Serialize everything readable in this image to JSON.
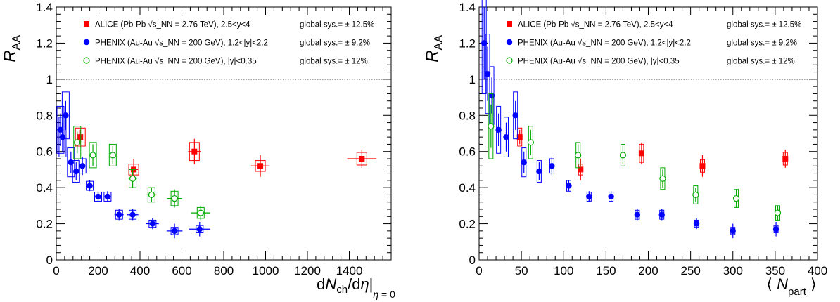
{
  "colors": {
    "alice": "#ff0000",
    "phenix_fwd": "#0000ff",
    "phenix_mid": "#00aa00",
    "reference_line": "#000000"
  },
  "legend": {
    "entries": [
      {
        "key": "alice",
        "marker": "filled-square",
        "label": "ALICE (Pb-Pb √s_NN = 2.76 TeV), 2.5<y<4",
        "sys": "global sys.= ± 12.5%"
      },
      {
        "key": "phenix_fwd",
        "marker": "filled-circle",
        "label": "PHENIX (Au-Au √s_NN = 200 GeV), 1.2<|y|<2.2",
        "sys": "global sys.= ± 9.2%"
      },
      {
        "key": "phenix_mid",
        "marker": "open-circle",
        "label": "PHENIX (Au-Au √s_NN = 200 GeV), |y|<0.35",
        "sys": "global sys.= ± 12%"
      }
    ]
  },
  "chart_data": [
    {
      "type": "scatter",
      "ylabel": "R_AA",
      "xlabel": "dN_ch/dη|_η = 0",
      "xlim": [
        0,
        1600
      ],
      "ylim": [
        0,
        1.4
      ],
      "xticks": [
        0,
        200,
        400,
        600,
        800,
        1000,
        1200,
        1400
      ],
      "yticks": [
        0,
        0.2,
        0.4,
        0.6,
        0.8,
        1,
        1.2,
        1.4
      ],
      "reference_line": 1,
      "series": [
        {
          "key": "alice",
          "points": [
            {
              "x": 115,
              "y": 0.68,
              "yerr": 0.04,
              "xerr": 12,
              "sys": 0.05,
              "boxw": 12
            },
            {
              "x": 370,
              "y": 0.5,
              "yerr": 0.06,
              "xerr": 20,
              "sys": 0.03,
              "boxw": 12
            },
            {
              "x": 660,
              "y": 0.6,
              "yerr": 0.07,
              "xerr": 30,
              "sys": 0.05,
              "boxw": 12
            },
            {
              "x": 975,
              "y": 0.52,
              "yerr": 0.06,
              "xerr": 45,
              "sys": 0.03,
              "boxw": 12
            },
            {
              "x": 1460,
              "y": 0.56,
              "yerr": 0.05,
              "xerr": 70,
              "sys": 0.035,
              "boxw": 12
            }
          ]
        },
        {
          "key": "phenix_fwd",
          "points": [
            {
              "x": 20,
              "y": 0.72,
              "yerr": 0.09,
              "xerr": 5,
              "sys": 0.13,
              "boxw": 8
            },
            {
              "x": 30,
              "y": 0.68,
              "yerr": 0.08,
              "xerr": 5,
              "sys": 0.11,
              "boxw": 8
            },
            {
              "x": 45,
              "y": 0.8,
              "yerr": 0.08,
              "xerr": 6,
              "sys": 0.13,
              "boxw": 8
            },
            {
              "x": 70,
              "y": 0.54,
              "yerr": 0.06,
              "xerr": 8,
              "sys": 0.08,
              "boxw": 8
            },
            {
              "x": 95,
              "y": 0.49,
              "yerr": 0.05,
              "xerr": 10,
              "sys": 0.06,
              "boxw": 8
            },
            {
              "x": 125,
              "y": 0.52,
              "yerr": 0.05,
              "xerr": 10,
              "sys": 0.04,
              "boxw": 8
            },
            {
              "x": 160,
              "y": 0.41,
              "yerr": 0.03,
              "xerr": 12,
              "sys": 0.025,
              "boxw": 8
            },
            {
              "x": 200,
              "y": 0.35,
              "yerr": 0.03,
              "xerr": 15,
              "sys": 0.025,
              "boxw": 8
            },
            {
              "x": 245,
              "y": 0.35,
              "yerr": 0.03,
              "xerr": 18,
              "sys": 0.025,
              "boxw": 8
            },
            {
              "x": 300,
              "y": 0.25,
              "yerr": 0.03,
              "xerr": 22,
              "sys": 0.025,
              "boxw": 8
            },
            {
              "x": 365,
              "y": 0.25,
              "yerr": 0.03,
              "xerr": 27,
              "sys": 0.025,
              "boxw": 8
            },
            {
              "x": 460,
              "y": 0.2,
              "yerr": 0.03,
              "xerr": 30,
              "sys": 0.02,
              "boxw": 8
            },
            {
              "x": 565,
              "y": 0.16,
              "yerr": 0.04,
              "xerr": 38,
              "sys": 0.02,
              "boxw": 8
            },
            {
              "x": 685,
              "y": 0.17,
              "yerr": 0.04,
              "xerr": 50,
              "sys": 0.02,
              "boxw": 8
            }
          ]
        },
        {
          "key": "phenix_mid",
          "points": [
            {
              "x": 100,
              "y": 0.65,
              "yerr": 0.06,
              "xerr": 8,
              "sys": 0.09,
              "boxw": 8
            },
            {
              "x": 175,
              "y": 0.58,
              "yerr": 0.06,
              "xerr": 10,
              "sys": 0.07,
              "boxw": 8
            },
            {
              "x": 270,
              "y": 0.58,
              "yerr": 0.05,
              "xerr": 15,
              "sys": 0.06,
              "boxw": 8
            },
            {
              "x": 365,
              "y": 0.45,
              "yerr": 0.05,
              "xerr": 20,
              "sys": 0.05,
              "boxw": 8
            },
            {
              "x": 455,
              "y": 0.36,
              "yerr": 0.04,
              "xerr": 25,
              "sys": 0.04,
              "boxw": 8
            },
            {
              "x": 565,
              "y": 0.34,
              "yerr": 0.05,
              "xerr": 35,
              "sys": 0.04,
              "boxw": 8
            },
            {
              "x": 690,
              "y": 0.26,
              "yerr": 0.04,
              "xerr": 45,
              "sys": 0.03,
              "boxw": 8
            }
          ]
        }
      ]
    },
    {
      "type": "scatter",
      "ylabel": "R_AA",
      "xlabel": "⟨ N_part ⟩",
      "xlim": [
        0,
        400
      ],
      "ylim": [
        0,
        1.4
      ],
      "xticks": [
        0,
        50,
        100,
        150,
        200,
        250,
        300,
        350,
        400
      ],
      "yticks": [
        0,
        0.2,
        0.4,
        0.6,
        0.8,
        1,
        1.2,
        1.4
      ],
      "reference_line": 1,
      "series": [
        {
          "key": "alice",
          "points": [
            {
              "x": 48,
              "y": 0.68,
              "yerr": 0.04,
              "xerr": 2,
              "sys": 0.05,
              "boxw": 4
            },
            {
              "x": 120,
              "y": 0.5,
              "yerr": 0.06,
              "xerr": 3,
              "sys": 0.03,
              "boxw": 4
            },
            {
              "x": 192,
              "y": 0.59,
              "yerr": 0.06,
              "xerr": 3,
              "sys": 0.05,
              "boxw": 4
            },
            {
              "x": 264,
              "y": 0.52,
              "yerr": 0.06,
              "xerr": 3,
              "sys": 0.035,
              "boxw": 4
            },
            {
              "x": 362,
              "y": 0.56,
              "yerr": 0.05,
              "xerr": 3,
              "sys": 0.035,
              "boxw": 4
            }
          ]
        },
        {
          "key": "phenix_fwd",
          "points": [
            {
              "x": 6,
              "y": 1.2,
              "yerr": 0.2,
              "xerr": 1,
              "sys": 0.28,
              "boxw": 4
            },
            {
              "x": 10,
              "y": 1.03,
              "yerr": 0.15,
              "xerr": 1,
              "sys": 0.22,
              "boxw": 4
            },
            {
              "x": 15,
              "y": 0.91,
              "yerr": 0.1,
              "xerr": 1,
              "sys": 0.16,
              "boxw": 4
            },
            {
              "x": 23,
              "y": 0.72,
              "yerr": 0.09,
              "xerr": 1,
              "sys": 0.13,
              "boxw": 4
            },
            {
              "x": 32,
              "y": 0.68,
              "yerr": 0.08,
              "xerr": 1,
              "sys": 0.11,
              "boxw": 4
            },
            {
              "x": 43,
              "y": 0.8,
              "yerr": 0.08,
              "xerr": 1,
              "sys": 0.13,
              "boxw": 4
            },
            {
              "x": 53,
              "y": 0.54,
              "yerr": 0.06,
              "xerr": 1,
              "sys": 0.08,
              "boxw": 4
            },
            {
              "x": 71,
              "y": 0.49,
              "yerr": 0.05,
              "xerr": 1,
              "sys": 0.06,
              "boxw": 4
            },
            {
              "x": 86,
              "y": 0.52,
              "yerr": 0.05,
              "xerr": 1,
              "sys": 0.04,
              "boxw": 4
            },
            {
              "x": 106,
              "y": 0.41,
              "yerr": 0.03,
              "xerr": 1,
              "sys": 0.03,
              "boxw": 4
            },
            {
              "x": 130,
              "y": 0.35,
              "yerr": 0.03,
              "xerr": 1,
              "sys": 0.025,
              "boxw": 4
            },
            {
              "x": 156,
              "y": 0.35,
              "yerr": 0.03,
              "xerr": 1,
              "sys": 0.025,
              "boxw": 4
            },
            {
              "x": 187,
              "y": 0.25,
              "yerr": 0.03,
              "xerr": 1,
              "sys": 0.025,
              "boxw": 4
            },
            {
              "x": 216,
              "y": 0.25,
              "yerr": 0.03,
              "xerr": 1,
              "sys": 0.025,
              "boxw": 4
            },
            {
              "x": 257,
              "y": 0.2,
              "yerr": 0.03,
              "xerr": 1,
              "sys": 0.02,
              "boxw": 4
            },
            {
              "x": 300,
              "y": 0.16,
              "yerr": 0.04,
              "xerr": 1,
              "sys": 0.02,
              "boxw": 4
            },
            {
              "x": 351,
              "y": 0.17,
              "yerr": 0.04,
              "xerr": 1,
              "sys": 0.02,
              "boxw": 4
            }
          ]
        },
        {
          "key": "phenix_mid",
          "points": [
            {
              "x": 14,
              "y": 0.74,
              "yerr": 0.12,
              "xerr": 1,
              "sys": 0.18,
              "boxw": 4
            },
            {
              "x": 61,
              "y": 0.65,
              "yerr": 0.07,
              "xerr": 1,
              "sys": 0.09,
              "boxw": 4
            },
            {
              "x": 117,
              "y": 0.58,
              "yerr": 0.06,
              "xerr": 1,
              "sys": 0.07,
              "boxw": 4
            },
            {
              "x": 170,
              "y": 0.58,
              "yerr": 0.05,
              "xerr": 1,
              "sys": 0.06,
              "boxw": 4
            },
            {
              "x": 217,
              "y": 0.45,
              "yerr": 0.05,
              "xerr": 1,
              "sys": 0.06,
              "boxw": 4
            },
            {
              "x": 256,
              "y": 0.36,
              "yerr": 0.04,
              "xerr": 1,
              "sys": 0.05,
              "boxw": 4
            },
            {
              "x": 304,
              "y": 0.34,
              "yerr": 0.05,
              "xerr": 1,
              "sys": 0.05,
              "boxw": 4
            },
            {
              "x": 353,
              "y": 0.26,
              "yerr": 0.04,
              "xerr": 1,
              "sys": 0.04,
              "boxw": 4
            }
          ]
        }
      ]
    }
  ]
}
